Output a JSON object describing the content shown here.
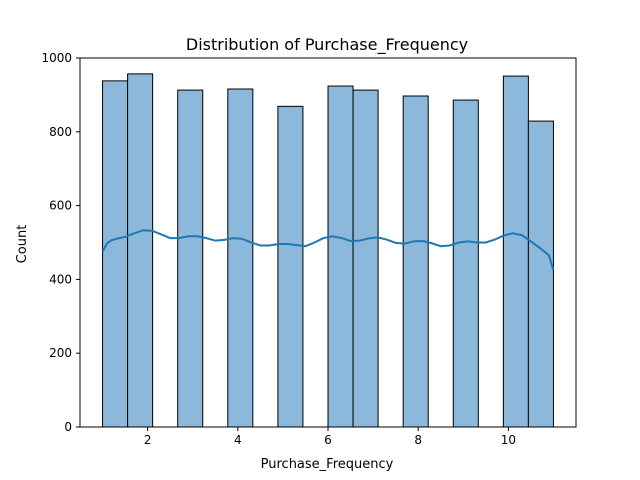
{
  "chart_data": {
    "type": "bar",
    "title": "Distribution of Purchase_Frequency",
    "xlabel": "Purchase_Frequency",
    "ylabel": "Count",
    "xlim": [
      0.5,
      11.5
    ],
    "ylim": [
      0,
      1000
    ],
    "xticks": [
      2,
      4,
      6,
      8,
      10
    ],
    "yticks": [
      0,
      200,
      400,
      600,
      800,
      1000
    ],
    "grid": false,
    "bins": [
      {
        "x0": 1.0,
        "x1": 1.556,
        "count": 938
      },
      {
        "x0": 1.556,
        "x1": 2.111,
        "count": 957
      },
      {
        "x0": 2.667,
        "x1": 3.222,
        "count": 913
      },
      {
        "x0": 3.778,
        "x1": 4.333,
        "count": 916
      },
      {
        "x0": 4.889,
        "x1": 5.444,
        "count": 869
      },
      {
        "x0": 6.0,
        "x1": 6.556,
        "count": 924
      },
      {
        "x0": 6.556,
        "x1": 7.111,
        "count": 913
      },
      {
        "x0": 7.667,
        "x1": 8.222,
        "count": 897
      },
      {
        "x0": 8.778,
        "x1": 9.333,
        "count": 886
      },
      {
        "x0": 9.889,
        "x1": 10.444,
        "count": 951
      },
      {
        "x0": 10.444,
        "x1": 11.0,
        "count": 829
      }
    ],
    "kde": {
      "x": [
        1.0,
        1.1,
        1.2,
        1.3,
        1.5,
        1.7,
        1.9,
        2.1,
        2.3,
        2.5,
        2.7,
        2.9,
        3.1,
        3.3,
        3.5,
        3.7,
        3.9,
        4.1,
        4.3,
        4.5,
        4.7,
        4.9,
        5.1,
        5.3,
        5.5,
        5.7,
        5.9,
        6.1,
        6.3,
        6.5,
        6.7,
        6.9,
        7.1,
        7.3,
        7.5,
        7.7,
        7.9,
        8.1,
        8.3,
        8.5,
        8.7,
        8.9,
        9.1,
        9.3,
        9.5,
        9.7,
        9.9,
        10.1,
        10.3,
        10.5,
        10.7,
        10.9,
        11.0
      ],
      "y": [
        475,
        498,
        506,
        510,
        515,
        525,
        533,
        532,
        522,
        512,
        512,
        517,
        517,
        512,
        505,
        507,
        512,
        510,
        500,
        492,
        492,
        496,
        496,
        493,
        490,
        500,
        512,
        517,
        512,
        504,
        505,
        511,
        514,
        508,
        499,
        497,
        503,
        504,
        498,
        490,
        492,
        500,
        503,
        500,
        500,
        508,
        519,
        525,
        520,
        503,
        485,
        465,
        425
      ],
      "color": "#1f77b4"
    },
    "bar_fill": "#8cb8db",
    "bar_edge": "#000000"
  }
}
